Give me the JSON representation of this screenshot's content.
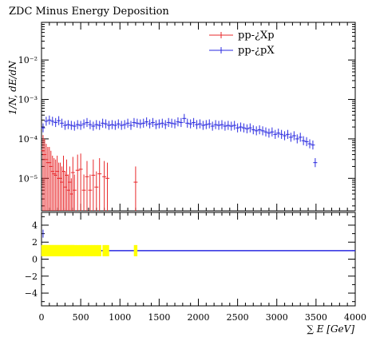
{
  "chart_data": [
    {
      "type": "scatter",
      "title": "ZDC Minus Energy Deposition",
      "ylabel": "1/N, dE/dN",
      "xlabel": "",
      "xlim": [
        0,
        4000
      ],
      "ylim_log": [
        1.5e-06,
        0.09
      ],
      "y_scale": "log",
      "ytick_labels": [
        "10⁻²",
        "10⁻³",
        "10⁻⁴",
        "10⁻⁵"
      ],
      "legend_position": "top-right",
      "series": [
        {
          "name": "pp-¿Xp",
          "color": "#e8282b",
          "x": [
            20,
            40,
            60,
            80,
            100,
            120,
            140,
            160,
            180,
            200,
            220,
            240,
            260,
            280,
            300,
            320,
            340,
            360,
            380,
            400,
            420,
            460,
            500,
            540,
            580,
            620,
            660,
            700,
            740,
            800,
            840,
            1200
          ],
          "values": [
            5e-05,
            4e-05,
            3e-05,
            2.5e-05,
            2.5e-05,
            2e-05,
            1.5e-05,
            1.3e-05,
            1.2e-05,
            1.5e-05,
            1e-05,
            1e-05,
            8e-06,
            1.5e-05,
            6e-06,
            1.2e-05,
            5e-06,
            8e-06,
            4e-06,
            1.4e-05,
            5e-06,
            1.6e-05,
            1.7e-05,
            5e-06,
            1.1e-05,
            5e-06,
            1.2e-05,
            6e-06,
            1.3e-05,
            1.1e-05,
            1e-05,
            8e-06
          ]
        },
        {
          "name": "pp-¿pX",
          "color": "#2a2ae0",
          "x": [
            20,
            60,
            100,
            140,
            180,
            220,
            260,
            300,
            340,
            380,
            420,
            460,
            500,
            540,
            580,
            620,
            660,
            700,
            740,
            780,
            820,
            860,
            900,
            940,
            980,
            1020,
            1060,
            1100,
            1140,
            1180,
            1220,
            1260,
            1300,
            1340,
            1380,
            1420,
            1460,
            1500,
            1540,
            1580,
            1620,
            1660,
            1700,
            1740,
            1780,
            1820,
            1860,
            1900,
            1940,
            1980,
            2020,
            2060,
            2100,
            2140,
            2180,
            2220,
            2260,
            2300,
            2340,
            2380,
            2420,
            2460,
            2500,
            2540,
            2580,
            2620,
            2660,
            2700,
            2740,
            2780,
            2820,
            2860,
            2900,
            2940,
            2980,
            3020,
            3060,
            3100,
            3140,
            3180,
            3220,
            3260,
            3300,
            3340,
            3380,
            3420,
            3460,
            3490
          ],
          "values": [
            0.00019,
            0.00028,
            0.0003,
            0.00028,
            0.00026,
            0.00029,
            0.00025,
            0.00022,
            0.00023,
            0.00022,
            0.00021,
            0.00023,
            0.00022,
            0.00024,
            0.00026,
            0.00023,
            0.00021,
            0.00023,
            0.00022,
            0.00025,
            0.00024,
            0.00022,
            0.00023,
            0.00022,
            0.00024,
            0.00022,
            0.00023,
            0.00025,
            0.00022,
            0.00026,
            0.00025,
            0.00024,
            0.00025,
            0.00027,
            0.00024,
            0.00026,
            0.00023,
            0.00024,
            0.00025,
            0.00023,
            0.00026,
            0.00025,
            0.00024,
            0.00027,
            0.00026,
            0.00033,
            0.00025,
            0.00024,
            0.00026,
            0.00023,
            0.00024,
            0.00022,
            0.00023,
            0.00024,
            0.00021,
            0.00023,
            0.00022,
            0.00023,
            0.00021,
            0.00022,
            0.00021,
            0.00022,
            0.00019,
            0.0002,
            0.00019,
            0.00018,
            0.00019,
            0.00017,
            0.00016,
            0.00017,
            0.00016,
            0.00015,
            0.00014,
            0.00015,
            0.00013,
            0.00014,
            0.00013,
            0.00012,
            0.00013,
            0.00011,
            0.00012,
            0.0001,
            0.00011,
            9e-05,
            8.5e-05,
            7.5e-05,
            7e-05,
            2.5e-05
          ]
        }
      ]
    },
    {
      "type": "scatter",
      "title": "",
      "xlabel": "∑ E [GeV]",
      "ylabel": "",
      "xlim": [
        0,
        4000
      ],
      "ylim": [
        -5.5,
        5.5
      ],
      "xtick_labels": [
        "0",
        "500",
        "1000",
        "1500",
        "2000",
        "2500",
        "3000",
        "3500",
        "4000"
      ],
      "ytick_labels": [
        "4",
        "2",
        "0",
        "−2",
        "−4"
      ],
      "reference_line": 1,
      "series": [
        {
          "name": "",
          "color": "#ffff00",
          "x": [
            20,
            40,
            60,
            80,
            100,
            120,
            140,
            160,
            180,
            200,
            220,
            240,
            260,
            280,
            300,
            320,
            340,
            360,
            380,
            400,
            420,
            460,
            500,
            540,
            580,
            620,
            660,
            700,
            740,
            800,
            840,
            1200
          ],
          "values": [
            1,
            1,
            1,
            1,
            1,
            1,
            1,
            1,
            1,
            1,
            1,
            1,
            1,
            1,
            1,
            1,
            1,
            1,
            1,
            1,
            1,
            1,
            1,
            1,
            1,
            1,
            1,
            1,
            1,
            1,
            1,
            1
          ]
        },
        {
          "name": "",
          "color": "#2a2ae0",
          "x": [
            20
          ],
          "values": [
            3.0
          ]
        }
      ]
    }
  ]
}
